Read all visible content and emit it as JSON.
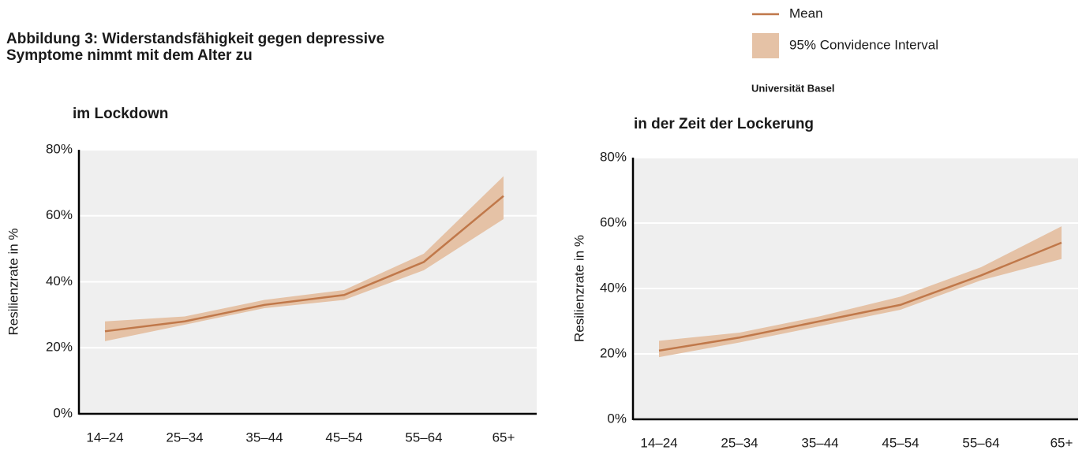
{
  "title": [
    "Abbildung 3: Widerstandsfähigkeit gegen depressive",
    "Symptome nimmt mit dem Alter zu"
  ],
  "source": "Universität Basel",
  "legend": [
    {
      "name": "Mean",
      "color": "#c0784a"
    },
    {
      "name": "95% Convidence Interval",
      "color": "#e5c2a6"
    }
  ],
  "chart_data": [
    {
      "type": "line",
      "title": "im Lockdown",
      "y_label": "Resilienzrate in %",
      "categories": [
        "14–24",
        "25–34",
        "35–44",
        "45–54",
        "55–64",
        "65+"
      ],
      "mean": [
        25,
        28,
        33,
        36,
        46,
        66
      ],
      "lower": [
        22,
        27,
        32,
        34.5,
        43.5,
        59
      ],
      "upper": [
        28,
        29.5,
        34.5,
        37.5,
        48.5,
        72
      ],
      "ylim": [
        0,
        80
      ],
      "yticks": [
        {
          "value": 0,
          "label": "0%"
        },
        {
          "value": 20,
          "label": "20%"
        },
        {
          "value": 40,
          "label": "40%"
        },
        {
          "value": 60,
          "label": "60%"
        },
        {
          "value": 80,
          "label": "80%"
        }
      ],
      "grid": true
    },
    {
      "type": "line",
      "title": "in der Zeit der Lockerung",
      "y_label": "Resilienzrate in %",
      "categories": [
        "14–24",
        "25–34",
        "35–44",
        "45–54",
        "55–64",
        "65+"
      ],
      "mean": [
        21,
        25,
        30,
        35,
        44,
        54
      ],
      "lower": [
        19,
        23.5,
        28.5,
        33.5,
        42.5,
        49
      ],
      "upper": [
        24,
        26.5,
        31.5,
        37.5,
        46.5,
        59
      ],
      "ylim": [
        0,
        80
      ],
      "yticks": [
        {
          "value": 0,
          "label": "0%"
        },
        {
          "value": 20,
          "label": "20%"
        },
        {
          "value": 40,
          "label": "40%"
        },
        {
          "value": 60,
          "label": "60%"
        },
        {
          "value": 80,
          "label": "80%"
        }
      ],
      "grid": true
    }
  ]
}
